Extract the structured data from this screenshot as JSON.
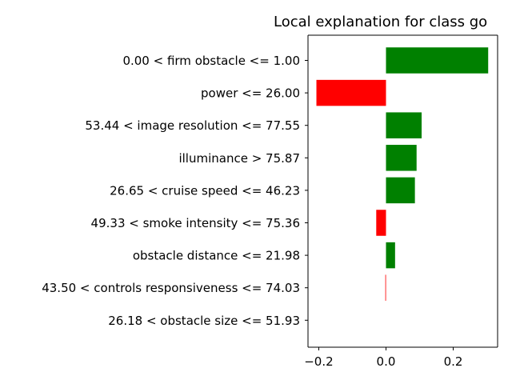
{
  "chart_data": {
    "type": "bar",
    "orientation": "horizontal",
    "title": "Local explanation for class go",
    "xlabel": "",
    "ylabel": "",
    "xlim": [
      -0.232,
      0.332
    ],
    "xticks": [
      "−0.2",
      "0.0",
      "0.2"
    ],
    "xtick_values": [
      -0.2,
      0.0,
      0.2
    ],
    "grid": false,
    "categories": [
      "0.00 < firm obstacle <= 1.00",
      "power <= 26.00",
      "53.44 < image resolution <= 77.55",
      "illuminance > 75.87",
      "26.65 < cruise speed <= 46.23",
      "49.33 < smoke intensity <= 75.36",
      "obstacle distance <= 21.98",
      "43.50 < controls responsiveness <= 74.03",
      "26.18 < obstacle size <= 51.93"
    ],
    "values": [
      0.304,
      -0.207,
      0.106,
      0.091,
      0.086,
      -0.029,
      0.027,
      -0.002,
      0.0
    ],
    "colors": {
      "positive": "#008000",
      "negative": "#ff0000"
    }
  }
}
